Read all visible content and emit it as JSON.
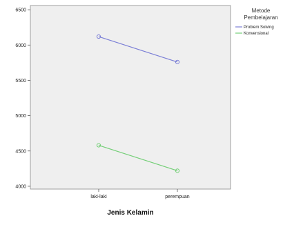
{
  "chart_data": {
    "type": "line",
    "categories": [
      "laki-laki",
      "perempuan"
    ],
    "series": [
      {
        "name": "Problem Solving",
        "values": [
          6120,
          5760
        ],
        "color": "#7b7fd6"
      },
      {
        "name": "Konvensional",
        "values": [
          4580,
          4220
        ],
        "color": "#74cf77"
      }
    ],
    "xlabel": "Jenis Kelamin",
    "ylabel": "",
    "ylim": [
      3960,
      6560
    ],
    "yticks": [
      4000,
      4500,
      5000,
      5500,
      6000,
      6500
    ],
    "grid": false,
    "legend": {
      "title_line1": "Metode",
      "title_line2": "Pembelajaran",
      "placement": "right"
    },
    "colors": {
      "plot_background": "#efefef",
      "axis": "#555555"
    }
  }
}
